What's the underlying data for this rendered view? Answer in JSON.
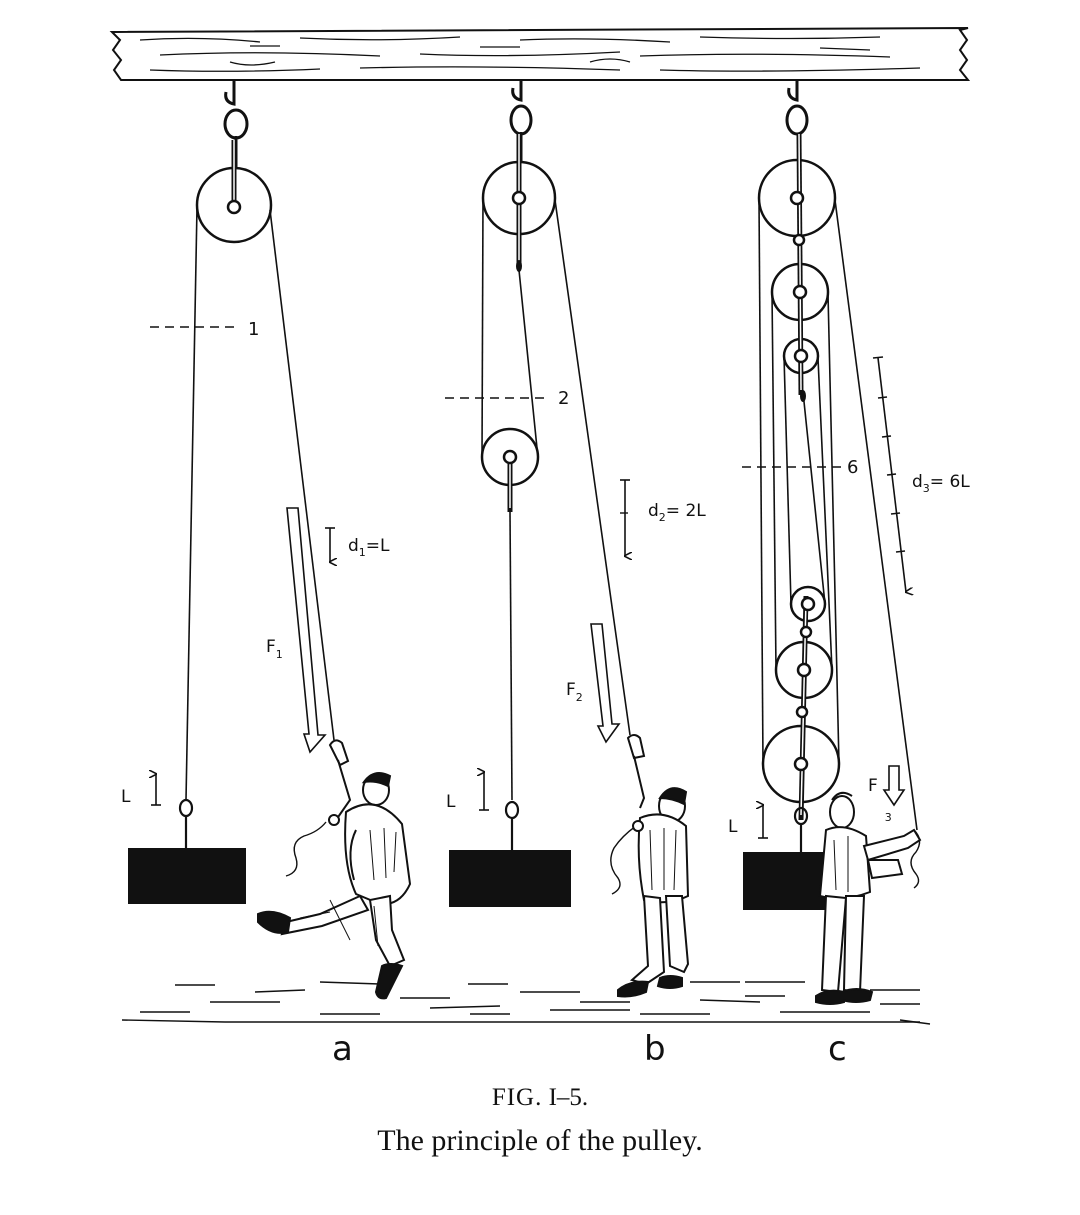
{
  "figure": {
    "caption_prefix": "FIG.",
    "caption_number": "I–5.",
    "caption_text": "The principle of the pulley."
  },
  "panels": {
    "a": {
      "letter": "a",
      "segment_label": "1",
      "distance_d": "d",
      "distance_sub": "1",
      "distance_rest": "=L",
      "force_f": "F",
      "force_sub": "1",
      "lift_label": "L"
    },
    "b": {
      "letter": "b",
      "segment_label": "2",
      "distance_d": "d",
      "distance_sub": "2",
      "distance_rest": "= 2L",
      "force_f": "F",
      "force_sub": "2",
      "lift_label": "L"
    },
    "c": {
      "letter": "c",
      "segment_label": "6",
      "distance_d": "d",
      "distance_sub": "3",
      "distance_rest": "= 6L",
      "force_f": "F",
      "force_sub": "3",
      "lift_label": "L"
    }
  },
  "colors": {
    "ink": "#111111",
    "paper": "#ffffff",
    "weight": "#111111"
  }
}
